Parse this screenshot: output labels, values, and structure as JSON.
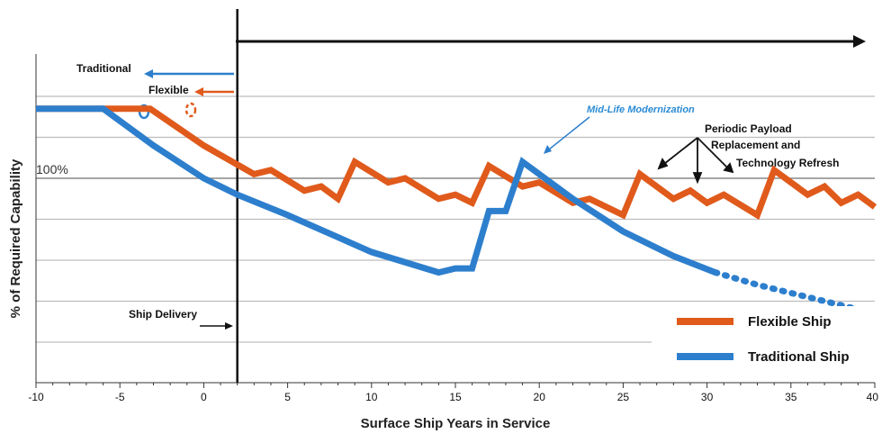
{
  "chart_data": {
    "type": "line",
    "title": "",
    "xlabel": "Surface Ship Years in Service",
    "ylabel": "% of Required Capability",
    "xlim": [
      -10,
      40
    ],
    "x_ticks": [
      "-10",
      "-5",
      "0",
      "5",
      "10",
      "15",
      "20",
      "25",
      "30",
      "35",
      "40"
    ],
    "reference_label": "100%",
    "grid": "horizontal",
    "legend_position": "bottom-right",
    "colors": {
      "flexible": "#e05a1c",
      "traditional": "#2d7fcd"
    },
    "series": [
      {
        "name": "Flexible Ship",
        "x": [
          -10,
          -3.2,
          0,
          3,
          4,
          6,
          7,
          8,
          9,
          11,
          12,
          14,
          15,
          16,
          17,
          19,
          20,
          22,
          23,
          25,
          26,
          28,
          29,
          30,
          31,
          33,
          34,
          36,
          37,
          38,
          39,
          40
        ],
        "y": [
          117,
          117,
          108,
          101,
          102,
          97,
          98,
          95,
          104,
          99,
          100,
          95,
          96,
          94,
          103,
          98,
          99,
          94,
          95,
          91,
          101,
          95,
          97,
          94,
          96,
          91,
          102,
          96,
          98,
          94,
          96,
          93
        ]
      },
      {
        "name": "Traditional Ship",
        "x": [
          -10,
          -6,
          -5,
          -3,
          0,
          2,
          5,
          10,
          14,
          15,
          16,
          17,
          18,
          19,
          22,
          25,
          28,
          30.5
        ],
        "y": [
          117,
          117,
          114,
          108,
          100,
          96,
          91,
          82,
          77,
          78,
          78,
          92,
          92,
          104,
          95,
          87,
          81,
          77
        ]
      },
      {
        "name": "Traditional Ship (projected)",
        "x": [
          30.5,
          33,
          36,
          38,
          40
        ],
        "y": [
          77,
          74,
          71,
          69,
          67
        ]
      }
    ],
    "vertical_marker": {
      "x": 2,
      "label": "Ship Delivery"
    }
  },
  "annotations": {
    "traditional": "Traditional",
    "flexible": "Flexible",
    "mid_life": "Mid-Life Modernization",
    "payload_line1": "Periodic Payload",
    "payload_line2": "Replacement and",
    "payload_line3": "Technology Refresh",
    "ship_delivery": "Ship Delivery"
  },
  "legend": {
    "flexible": "Flexible Ship",
    "traditional": "Traditional Ship"
  }
}
